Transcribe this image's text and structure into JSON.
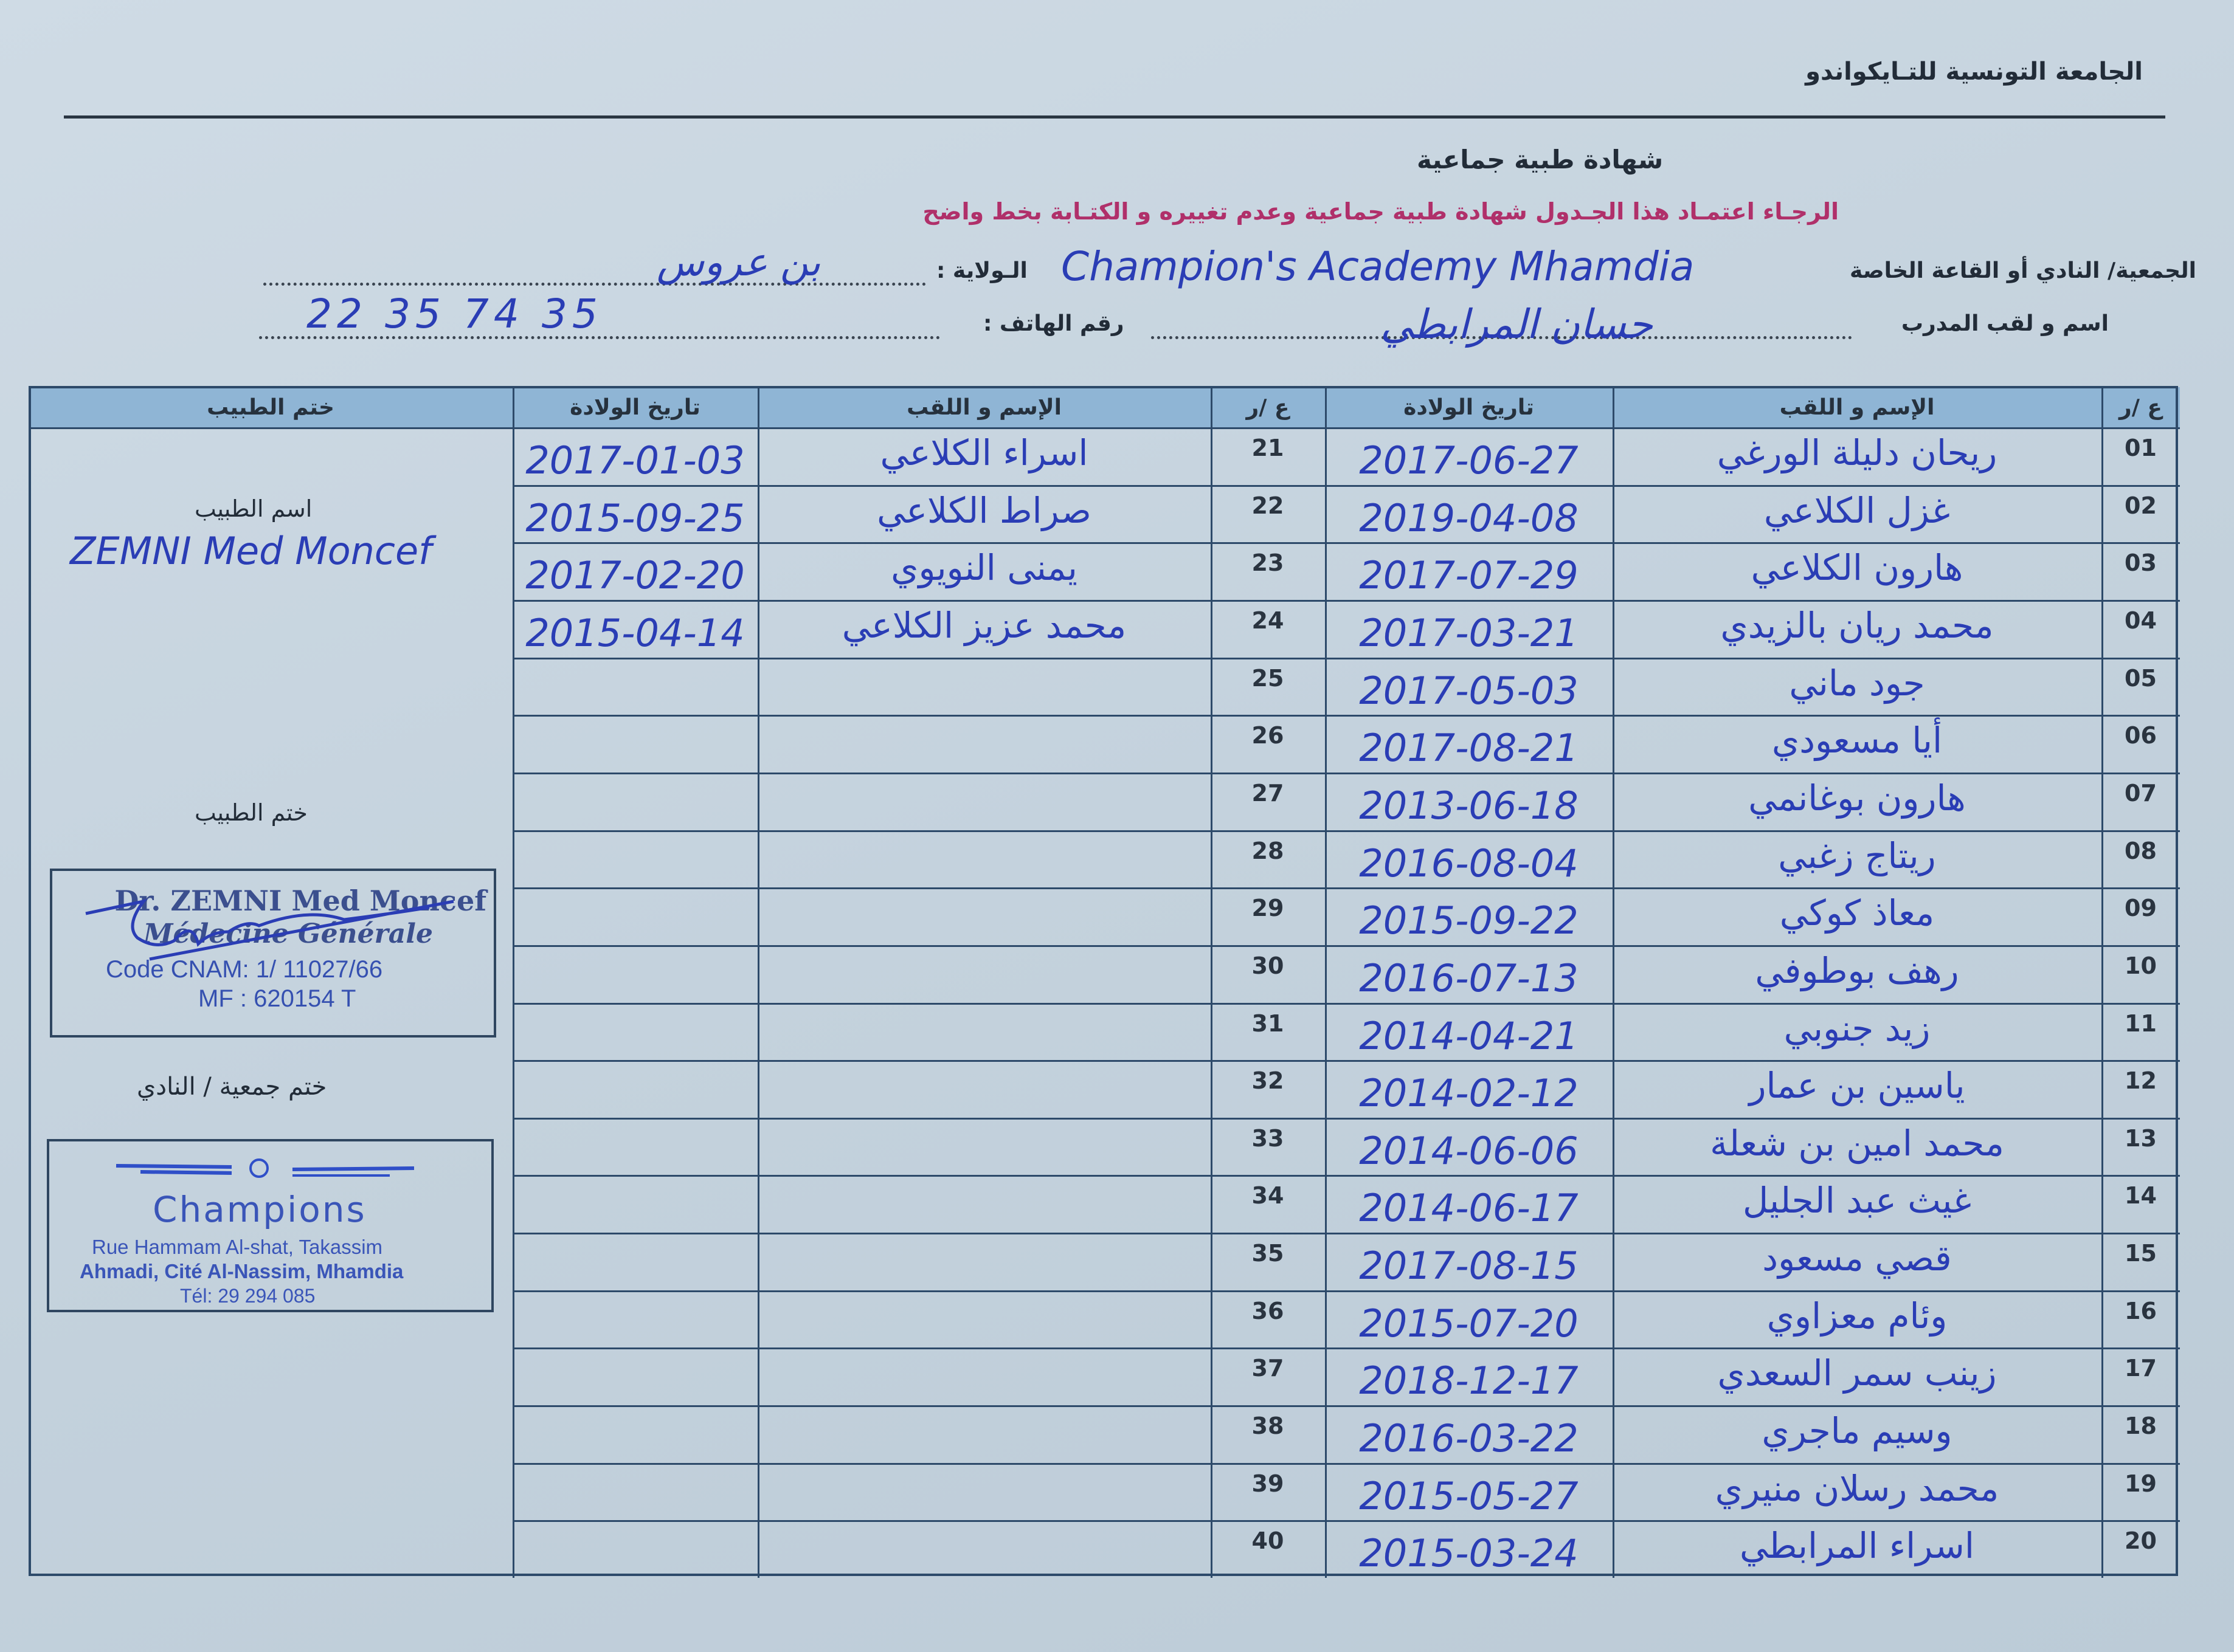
{
  "document": {
    "federation": "الجامعة التونسية للتـايكواندو",
    "title": "شهادة طبية جماعية",
    "notice": "الرجـاء اعتمـاد هذا الجـدول  شهادة طبية جماعية وعدم تغييره و الكتـابة بخط واضح",
    "notice_color": "#b0306a",
    "ink_color": "#2a3db5"
  },
  "form": {
    "club_label": "الجمعية/ النادي أو القاعة الخاصة",
    "club_value": "Champion's Academy Mhamdia",
    "state_label": "الـولاية :",
    "state_value": "بن عروس",
    "coach_label": "اسم و لقب المدرب",
    "coach_value": "حسان المرابطي",
    "phone_label": "رقم الهاتف :",
    "phone_value": "22 35 74 35"
  },
  "table": {
    "headers": {
      "num": "ع /ر",
      "name": "الإسم و اللقب",
      "dob": "تاريخ الولادة",
      "doctor_stamp": "ختم الطبيب"
    },
    "right_rows": [
      {
        "num": "01",
        "name": "ريحان دليلة الورغي",
        "dob": "2017-06-27"
      },
      {
        "num": "02",
        "name": "غزل الكلاعي",
        "dob": "2019-04-08"
      },
      {
        "num": "03",
        "name": "هارون الكلاعي",
        "dob": "2017-07-29"
      },
      {
        "num": "04",
        "name": "محمد ريان بالزيدي",
        "dob": "2017-03-21"
      },
      {
        "num": "05",
        "name": "جود ماني",
        "dob": "2017-05-03"
      },
      {
        "num": "06",
        "name": "أيا مسعودي",
        "dob": "2017-08-21"
      },
      {
        "num": "07",
        "name": "هارون بوغانمي",
        "dob": "2013-06-18"
      },
      {
        "num": "08",
        "name": "ريتاج زغبي",
        "dob": "2016-08-04"
      },
      {
        "num": "09",
        "name": "معاذ كوكي",
        "dob": "2015-09-22"
      },
      {
        "num": "10",
        "name": "رهف بوطوفي",
        "dob": "2016-07-13"
      },
      {
        "num": "11",
        "name": "زيد جنوبي",
        "dob": "2014-04-21"
      },
      {
        "num": "12",
        "name": "ياسين بن عمار",
        "dob": "2014-02-12"
      },
      {
        "num": "13",
        "name": "محمد امين بن شعلة",
        "dob": "2014-06-06"
      },
      {
        "num": "14",
        "name": "غيث عبد الجليل",
        "dob": "2014-06-17"
      },
      {
        "num": "15",
        "name": "قصي مسعود",
        "dob": "2017-08-15"
      },
      {
        "num": "16",
        "name": "وئام معزاوي",
        "dob": "2015-07-20"
      },
      {
        "num": "17",
        "name": "زينب سمر السعدي",
        "dob": "2018-12-17"
      },
      {
        "num": "18",
        "name": "وسيم ماجري",
        "dob": "2016-03-22"
      },
      {
        "num": "19",
        "name": "محمد رسلان منيري",
        "dob": "2015-05-27"
      },
      {
        "num": "20",
        "name": "اسراء المرابطي",
        "dob": "2015-03-24"
      }
    ],
    "left_rows": [
      {
        "num": "21",
        "name": "اسراء الكلاعي",
        "dob": "2017-01-03"
      },
      {
        "num": "22",
        "name": "صراط الكلاعي",
        "dob": "2015-09-25"
      },
      {
        "num": "23",
        "name": "يمنى النويوي",
        "dob": "2017-02-20"
      },
      {
        "num": "24",
        "name": "محمد عزيز الكلاعي",
        "dob": "2015-04-14"
      },
      {
        "num": "25",
        "name": "",
        "dob": ""
      },
      {
        "num": "26",
        "name": "",
        "dob": ""
      },
      {
        "num": "27",
        "name": "",
        "dob": ""
      },
      {
        "num": "28",
        "name": "",
        "dob": ""
      },
      {
        "num": "29",
        "name": "",
        "dob": ""
      },
      {
        "num": "30",
        "name": "",
        "dob": ""
      },
      {
        "num": "31",
        "name": "",
        "dob": ""
      },
      {
        "num": "32",
        "name": "",
        "dob": ""
      },
      {
        "num": "33",
        "name": "",
        "dob": ""
      },
      {
        "num": "34",
        "name": "",
        "dob": ""
      },
      {
        "num": "35",
        "name": "",
        "dob": ""
      },
      {
        "num": "36",
        "name": "",
        "dob": ""
      },
      {
        "num": "37",
        "name": "",
        "dob": ""
      },
      {
        "num": "38",
        "name": "",
        "dob": ""
      },
      {
        "num": "39",
        "name": "",
        "dob": ""
      },
      {
        "num": "40",
        "name": "",
        "dob": ""
      }
    ]
  },
  "doctor_panel": {
    "doctor_name_label": "اسم الطبيب",
    "doctor_name_value": "ZEMNI Med Moncef",
    "doctor_stamp_label": "ختم الطبيب",
    "doctor_stamp": {
      "line1": "Dr. ZEMNI Med Moncef",
      "line2": "Médecine Générale",
      "line3": "Code CNAM: 1/ 11027/66",
      "line4": "MF : 620154 T"
    },
    "club_stamp_label": "ختم جمعية / النادي",
    "club_stamp": {
      "name": "Champions",
      "address1": "Rue Hammam Al-shat, Takassim",
      "address2": "Ahmadi, Cité Al-Nassim, Mhamdia",
      "phone": "Tél: 29 294 085"
    }
  }
}
